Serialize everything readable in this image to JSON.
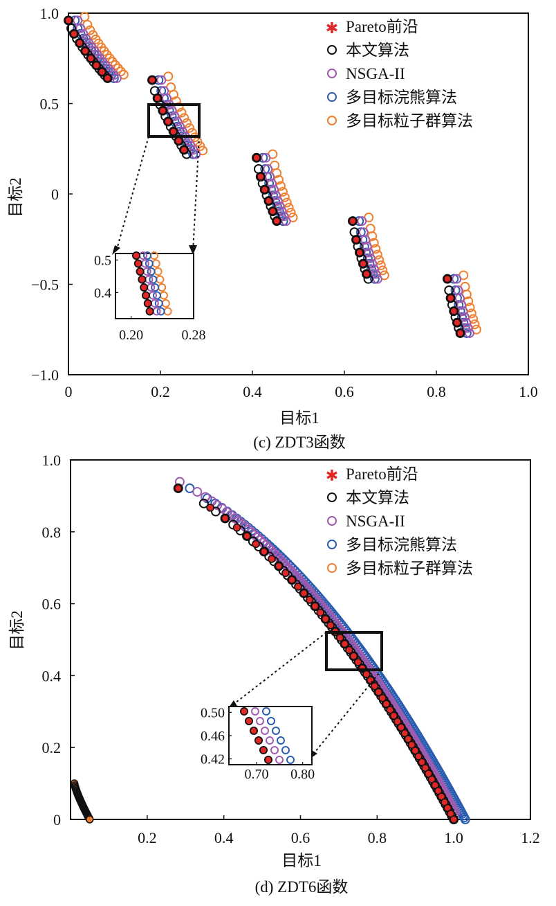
{
  "colors": {
    "pareto": "#e02828",
    "ours": "#111111",
    "nsga": "#a05cb0",
    "mopso_bear": "#2a5db0",
    "mopso": "#ee8030"
  },
  "legend": [
    "Pareto前沿",
    "本文算法",
    "NSGA-II",
    "多目标浣熊算法",
    "多目标粒子群算法"
  ],
  "chart_data": [
    {
      "type": "scatter",
      "caption": "(c) ZDT3函数",
      "xlabel": "目标1",
      "ylabel": "目标2",
      "xlim": [
        0,
        1.0
      ],
      "ylim": [
        -1.0,
        1.0
      ],
      "xticks": [
        0,
        0.2,
        0.4,
        0.6,
        0.8,
        1.0
      ],
      "xtick_labels": [
        "0",
        "0.2",
        "0.4",
        "0.6",
        "0.8",
        "1.0"
      ],
      "yticks": [
        1.0,
        0.5,
        0,
        -0.5,
        -1.0
      ],
      "ytick_labels": [
        "1.0",
        "0.5",
        "0",
        "−0.5",
        "−1.0"
      ],
      "legend_position": "top-right",
      "zoom_box": {
        "x": [
          0.18,
          0.28
        ],
        "y": [
          0.32,
          0.5
        ]
      },
      "inset": {
        "xticks": [
          0.2,
          0.28
        ],
        "xtick_labels": [
          "0.20",
          "0.28"
        ],
        "yticks": [
          0.5,
          0.4
        ],
        "ytick_labels": [
          "0.5",
          "0.4"
        ],
        "xlim": [
          0.18,
          0.28
        ],
        "ylim": [
          0.32,
          0.52
        ]
      },
      "segments": [
        {
          "x": [
            0.0,
            0.085
          ],
          "y_start": 0.96,
          "y_end": 0.64
        },
        {
          "x": [
            0.182,
            0.257
          ],
          "y_start": 0.63,
          "y_end": 0.22
        },
        {
          "x": [
            0.409,
            0.453
          ],
          "y_start": 0.2,
          "y_end": -0.15
        },
        {
          "x": [
            0.618,
            0.652
          ],
          "y_start": -0.15,
          "y_end": -0.47
        },
        {
          "x": [
            0.824,
            0.852
          ],
          "y_start": -0.47,
          "y_end": -0.77
        }
      ],
      "offsets": {
        "ours": 0.0,
        "nsga": 0.02,
        "mopso_bear": 0.014,
        "mopso": 0.035
      }
    },
    {
      "type": "scatter",
      "caption": "(d) ZDT6函数",
      "xlabel": "目标1",
      "ylabel": "目标2",
      "xlim": [
        0,
        1.2
      ],
      "ylim": [
        0,
        1.0
      ],
      "xticks": [
        0.2,
        0.4,
        0.6,
        0.8,
        1.0,
        1.2
      ],
      "xtick_labels": [
        "0.2",
        "0.4",
        "0.6",
        "0.8",
        "1.0",
        "1.2"
      ],
      "yticks": [
        1.0,
        0.8,
        0.6,
        0.4,
        0.2,
        0
      ],
      "ytick_labels": [
        "1.0",
        "0.8",
        "0.6",
        "0.4",
        "0.2",
        "0"
      ],
      "legend_position": "top-right",
      "zoom_box": {
        "x": [
          0.67,
          0.81
        ],
        "y": [
          0.42,
          0.52
        ]
      },
      "inset": {
        "xticks": [
          0.7,
          0.8
        ],
        "xtick_labels": [
          "0.70",
          "0.80"
        ],
        "yticks": [
          0.5,
          0.46,
          0.42
        ],
        "ytick_labels": [
          "0.50",
          "0.46",
          "0.42"
        ],
        "xlim": [
          0.64,
          0.82
        ],
        "ylim": [
          0.41,
          0.51
        ]
      },
      "front_x": [
        0.281,
        1.0
      ],
      "offsets": {
        "ours": 0.0,
        "nsga": 0.0,
        "mopso_bear": 0.03,
        "mopso": -0.935
      },
      "mopso_cluster": {
        "x": [
          0.01,
          0.05
        ],
        "y": [
          0.0,
          0.1
        ]
      }
    }
  ]
}
